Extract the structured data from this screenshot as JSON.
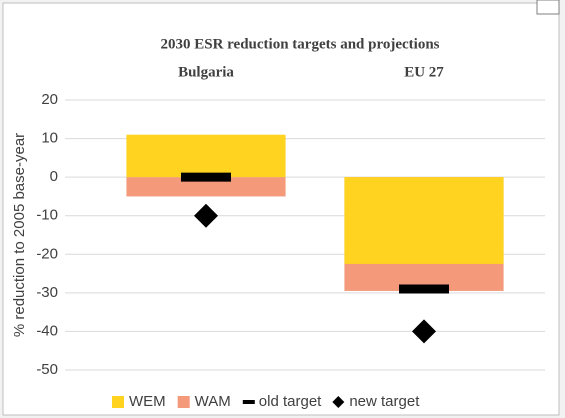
{
  "chart_data": {
    "type": "bar",
    "title": "2030 ESR reduction targets and projections",
    "categories": [
      "Bulgaria",
      "EU 27"
    ],
    "y_label": "% reduction to 2005 base-year",
    "ylim": [
      -50,
      20
    ],
    "yticks": [
      -50,
      -40,
      -30,
      -20,
      -10,
      0,
      10,
      20
    ],
    "grid": true,
    "legend": "bottom",
    "series": [
      {
        "name": "WAM",
        "color": "#f4997a",
        "kind": "bar",
        "values": [
          -5,
          -29.5
        ]
      },
      {
        "name": "WEM",
        "color": "#ffd320",
        "kind": "bar",
        "values": [
          11,
          -22.5
        ]
      },
      {
        "name": "old target",
        "color": "#000000",
        "kind": "dash",
        "values": [
          0,
          -29
        ]
      },
      {
        "name": "new target",
        "color": "#000000",
        "kind": "diamond",
        "values": [
          -10,
          -40
        ]
      }
    ],
    "legend_order": [
      1,
      0,
      2,
      3
    ]
  }
}
